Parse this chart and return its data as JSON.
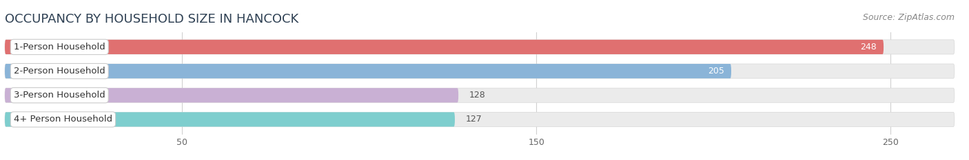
{
  "title": "OCCUPANCY BY HOUSEHOLD SIZE IN HANCOCK",
  "source": "Source: ZipAtlas.com",
  "categories": [
    "1-Person Household",
    "2-Person Household",
    "3-Person Household",
    "4+ Person Household"
  ],
  "values": [
    248,
    205,
    128,
    127
  ],
  "bar_colors": [
    "#e07070",
    "#8ab4d8",
    "#c9b0d4",
    "#7ecece"
  ],
  "label_colors": [
    "#ffffff",
    "#ffffff",
    "#666666",
    "#666666"
  ],
  "xlim": [
    0,
    268
  ],
  "xticks": [
    50,
    150,
    250
  ],
  "background_color": "#ffffff",
  "bar_bg_color": "#ebebeb",
  "title_fontsize": 13,
  "source_fontsize": 9,
  "label_fontsize": 9.5,
  "value_fontsize": 9
}
